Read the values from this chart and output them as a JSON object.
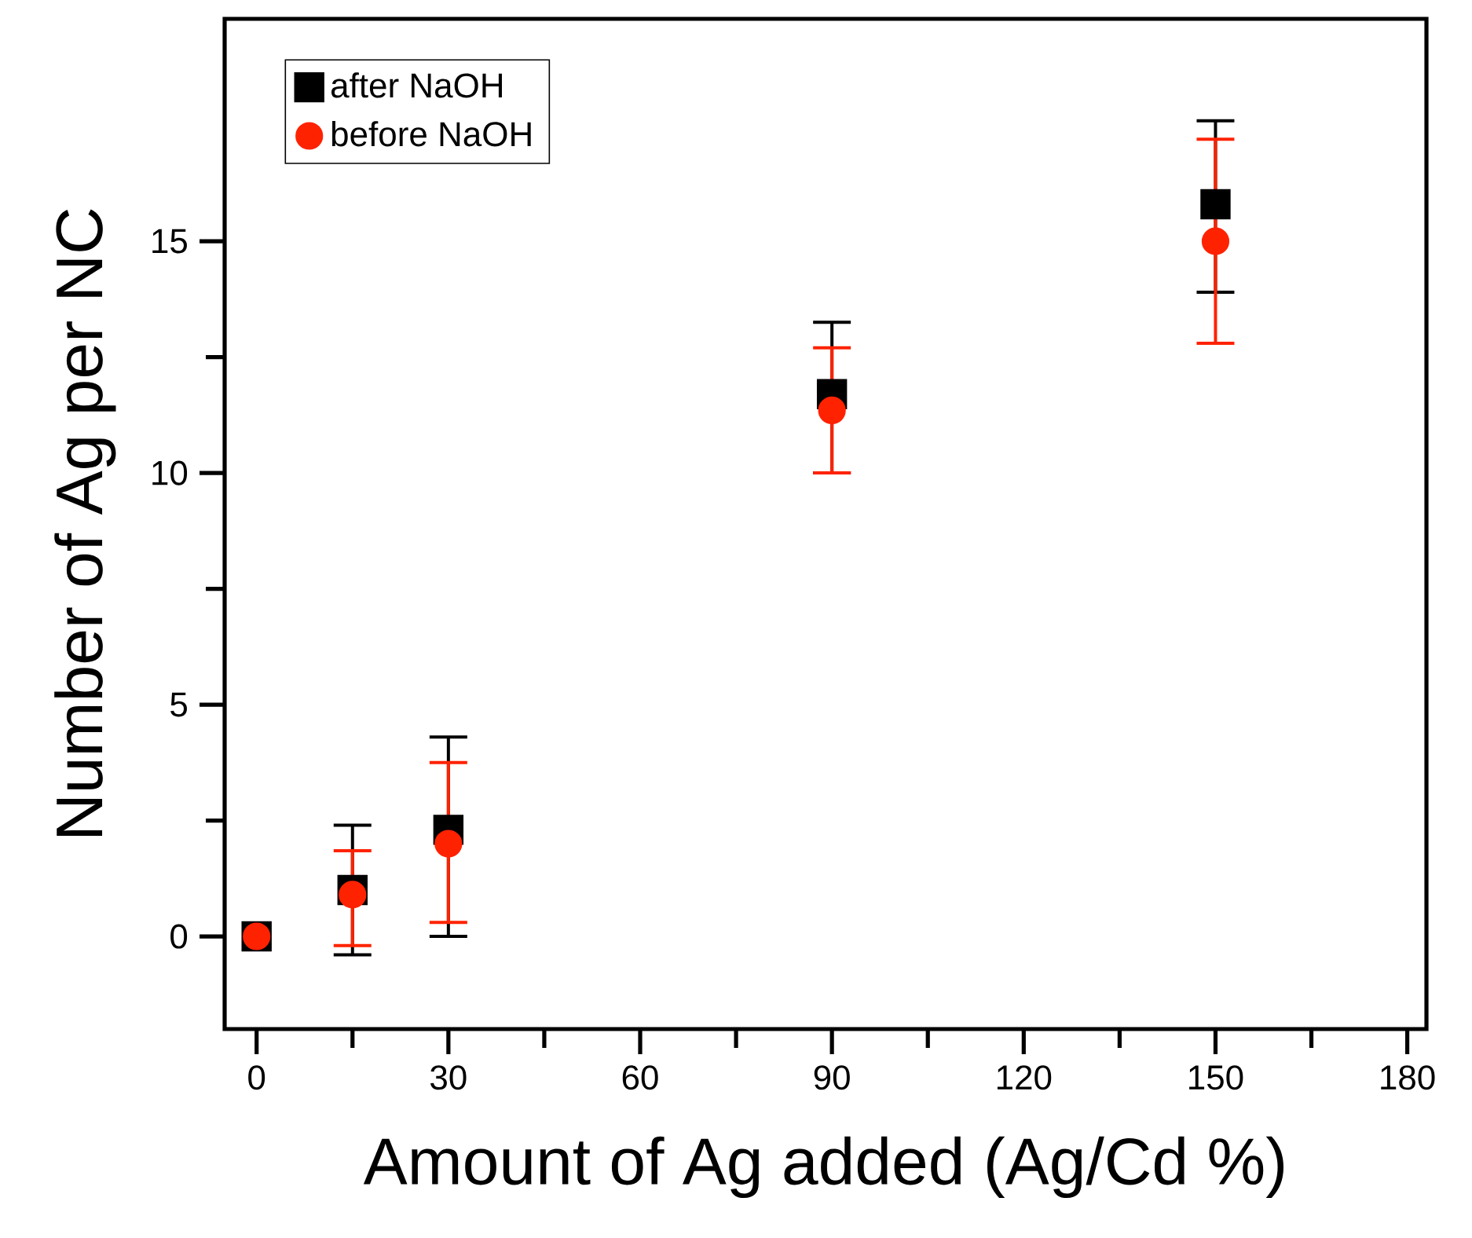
{
  "chart_data": {
    "type": "scatter",
    "xlabel": "Amount of Ag added (Ag/Cd %)",
    "ylabel": "Number of Ag per NC",
    "xlim": [
      -5,
      183
    ],
    "ylim": [
      -2,
      19.8
    ],
    "xticks": [
      0,
      30,
      60,
      90,
      120,
      150,
      180
    ],
    "yticks": [
      0,
      5,
      10,
      15
    ],
    "legend": "top left",
    "series": [
      {
        "name": "after NaOH",
        "color": "#000000",
        "marker": "square",
        "x": [
          0,
          15,
          30,
          90,
          150
        ],
        "values": [
          0,
          1.0,
          2.3,
          11.7,
          15.8
        ],
        "errors": [
          null,
          [
            -0.4,
            2.4
          ],
          [
            0.0,
            4.3
          ],
          [
            10.0,
            13.25
          ],
          [
            13.9,
            17.6
          ]
        ]
      },
      {
        "name": "before NaOH",
        "color": "#ff2200",
        "marker": "circle",
        "x": [
          0,
          15,
          30,
          90,
          150
        ],
        "values": [
          0,
          0.9,
          2.0,
          11.35,
          15.0
        ],
        "errors": [
          null,
          [
            -0.2,
            1.85
          ],
          [
            0.3,
            3.75
          ],
          [
            10.0,
            12.7
          ],
          [
            12.8,
            17.2
          ]
        ]
      }
    ]
  }
}
